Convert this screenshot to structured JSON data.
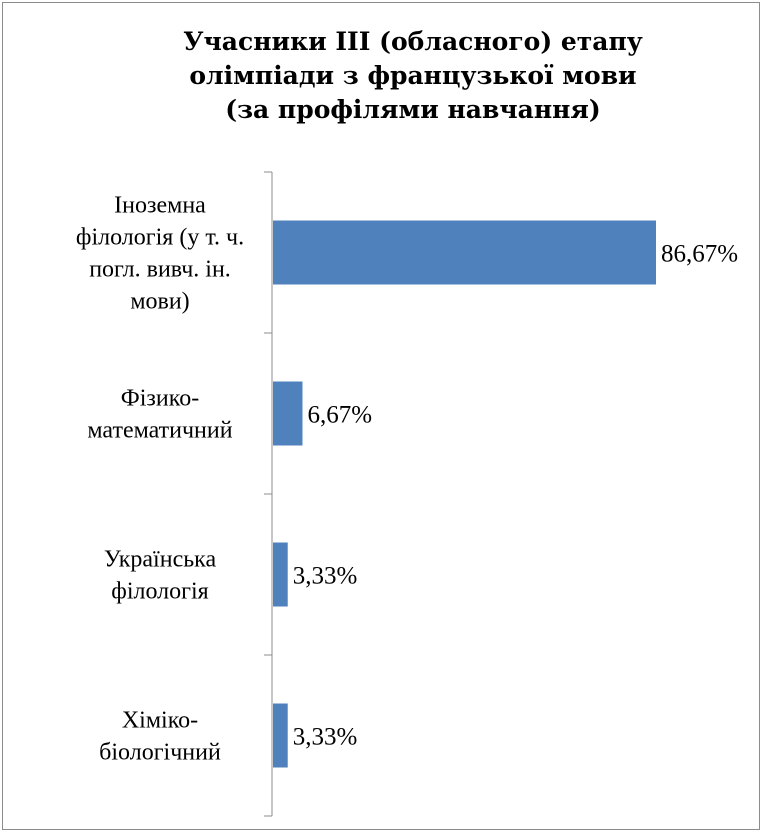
{
  "chart_data": {
    "type": "bar",
    "orientation": "horizontal",
    "title_lines": [
      "Учасники ІІІ (обласного) етапу",
      "олімпіади з французької мови",
      "(за профілями навчання)"
    ],
    "categories": [
      [
        "Іноземна",
        "філологія (у т. ч.",
        "погл. вивч. ін.",
        "мови)"
      ],
      [
        "Фізико-",
        "математичний"
      ],
      [
        "Українська",
        "філологія"
      ],
      [
        "Хіміко-",
        "біологічний"
      ]
    ],
    "values": [
      86.67,
      6.67,
      3.33,
      3.33
    ],
    "data_labels": [
      "86,67%",
      "6,67%",
      "3,33%",
      "3,33%"
    ],
    "xlim": [
      0,
      100
    ],
    "bar_color": "#4f81bd",
    "grid": false,
    "legend": "none"
  }
}
